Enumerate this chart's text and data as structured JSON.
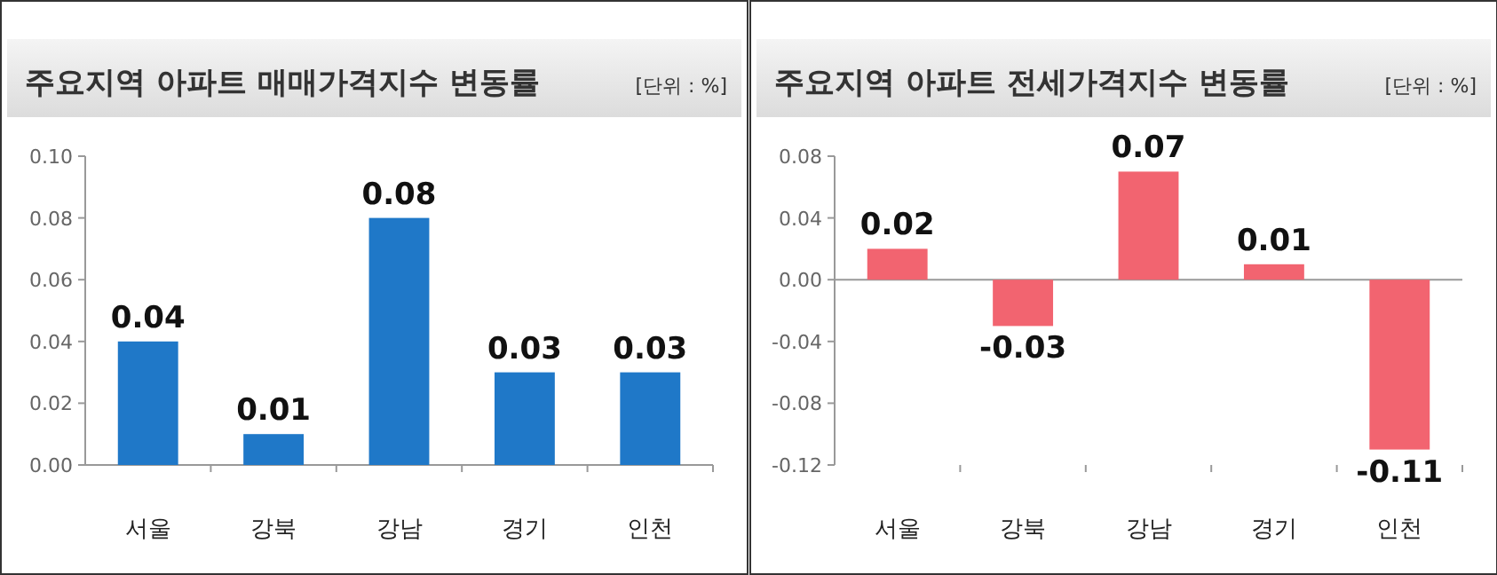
{
  "chart_data": [
    {
      "type": "bar",
      "title": "주요지역 아파트 매매가격지수 변동률",
      "annotations": [
        "[단위 : %]"
      ],
      "categories": [
        "서울",
        "강북",
        "강남",
        "경기",
        "인천"
      ],
      "series": [
        {
          "color": "#1f78c8",
          "values": [
            0.04,
            0.01,
            0.08,
            0.03,
            0.03
          ]
        }
      ],
      "value_labels": [
        "0.04",
        "0.01",
        "0.08",
        "0.03",
        "0.03"
      ],
      "ylim": [
        0,
        0.1
      ],
      "yticks": [
        {
          "value": 0,
          "label": "0.00"
        },
        {
          "value": 0.02,
          "label": "0.02"
        },
        {
          "value": 0.04,
          "label": "0.04"
        },
        {
          "value": 0.06,
          "label": "0.06"
        },
        {
          "value": 0.08,
          "label": "0.08"
        },
        {
          "value": 0.1,
          "label": "0.10"
        }
      ]
    },
    {
      "type": "bar",
      "title": "주요지역 아파트 전세가격지수 변동률",
      "annotations": [
        "[단위 : %]"
      ],
      "categories": [
        "서울",
        "강북",
        "강남",
        "경기",
        "인천"
      ],
      "series": [
        {
          "color": "#f26470",
          "values": [
            0.02,
            -0.03,
            0.07,
            0.01,
            -0.11
          ]
        }
      ],
      "value_labels": [
        "0.02",
        "-0.03",
        "0.07",
        "0.01",
        "-0.11"
      ],
      "ylim": [
        -0.12,
        0.08
      ],
      "yticks": [
        {
          "value": -0.12,
          "label": "-0.12"
        },
        {
          "value": -0.08,
          "label": "-0.08"
        },
        {
          "value": -0.04,
          "label": "-0.04"
        },
        {
          "value": 0,
          "label": "0.00"
        },
        {
          "value": 0.04,
          "label": "0.04"
        },
        {
          "value": 0.08,
          "label": "0.08"
        }
      ]
    }
  ]
}
